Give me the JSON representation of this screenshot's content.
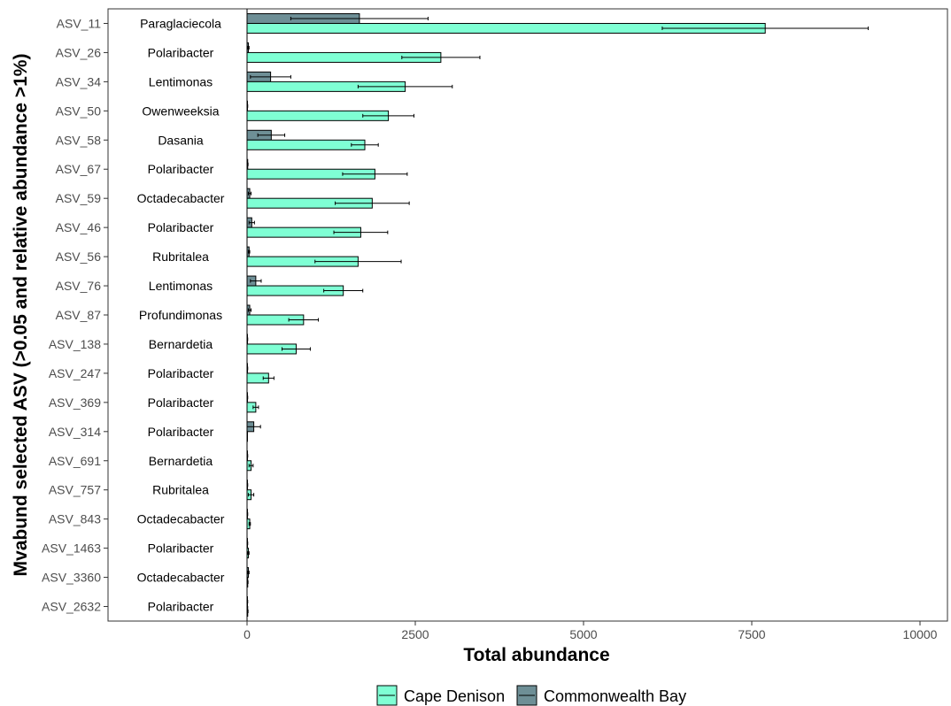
{
  "chart_data": {
    "type": "bar",
    "xlabel": "Total abundance",
    "ylabel": "Mvabund selected ASV (>0.05 and relative abundance >1%)",
    "xlim": [
      -1850,
      10250
    ],
    "xticks": [
      0,
      2500,
      5000,
      7500,
      10000
    ],
    "xtick_labels": [
      "0",
      "2500",
      "5000",
      "7500",
      "10000"
    ],
    "grid": false,
    "legend_position": "bottom",
    "categories": [
      "ASV_11",
      "ASV_26",
      "ASV_34",
      "ASV_50",
      "ASV_58",
      "ASV_67",
      "ASV_59",
      "ASV_46",
      "ASV_56",
      "ASV_76",
      "ASV_87",
      "ASV_138",
      "ASV_247",
      "ASV_369",
      "ASV_314",
      "ASV_691",
      "ASV_757",
      "ASV_843",
      "ASV_1463",
      "ASV_3360",
      "ASV_2632"
    ],
    "genus_labels": [
      "Paraglaciecola",
      "Polaribacter",
      "Lentimonas",
      "Owenweeksia",
      "Dasania",
      "Polaribacter",
      "Octadecabacter",
      "Polaribacter",
      "Rubritalea",
      "Lentimonas",
      "Profundimonas",
      "Bernardetia",
      "Polaribacter",
      "Polaribacter",
      "Polaribacter",
      "Bernardetia",
      "Rubritalea",
      "Octadecabacter",
      "Polaribacter",
      "Octadecabacter",
      "Polaribacter"
    ],
    "series": [
      {
        "name": "Cape Denison",
        "color": "#7fffd4",
        "values": [
          7700,
          2880,
          2350,
          2100,
          1750,
          1900,
          1860,
          1690,
          1650,
          1430,
          840,
          730,
          320,
          130,
          0,
          60,
          60,
          40,
          20,
          10,
          10
        ],
        "error": [
          1530,
          580,
          700,
          380,
          200,
          480,
          550,
          400,
          640,
          290,
          220,
          210,
          80,
          40,
          0,
          30,
          40,
          10,
          10,
          5,
          5
        ]
      },
      {
        "name": "Commonwealth Bay",
        "color": "#6e8f96",
        "values": [
          1670,
          20,
          350,
          5,
          360,
          10,
          40,
          70,
          30,
          130,
          40,
          5,
          5,
          5,
          100,
          5,
          5,
          5,
          5,
          20,
          5
        ],
        "error": [
          1020,
          10,
          300,
          5,
          200,
          5,
          20,
          40,
          10,
          80,
          20,
          5,
          5,
          5,
          100,
          5,
          5,
          5,
          5,
          10,
          5
        ]
      }
    ]
  }
}
